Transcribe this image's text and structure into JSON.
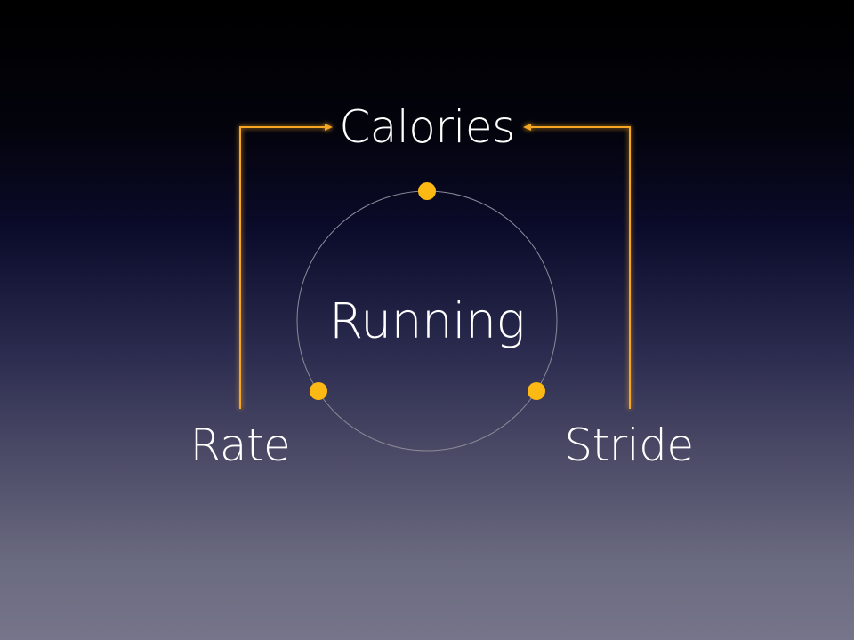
{
  "diagram": {
    "center_label": "Running",
    "top_label": "Calories",
    "left_label": "Rate",
    "right_label": "Stride",
    "colors": {
      "accent": "#fdb913",
      "connector": "#f5a623",
      "ring": "#8a8a98",
      "text": "#ffffff"
    }
  }
}
